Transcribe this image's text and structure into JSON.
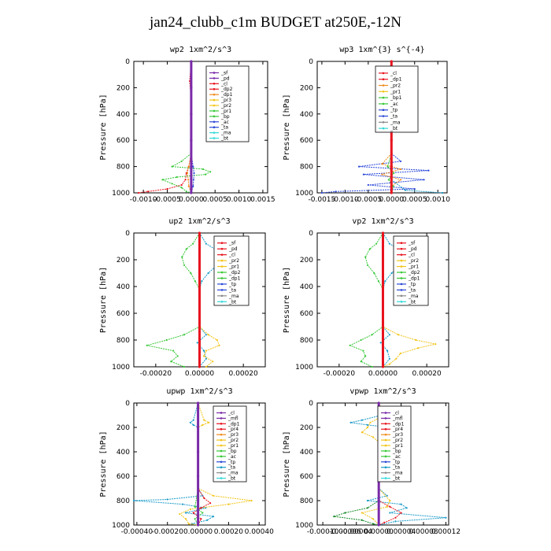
{
  "page_title": "jan24_clubb_c1m  BUDGET at250E,-12N",
  "colors": {
    "red": "#e8141e",
    "purple": "#7a2aa8",
    "orange": "#f08a1c",
    "yellow": "#f2c418",
    "green": "#38c838",
    "blue": "#2a48d8",
    "teal": "#1a9ac8",
    "cyan": "#30d8d8",
    "darkgreen": "#158a28",
    "magenta": "#c03aa0",
    "gray": "#8a8a8a"
  },
  "chart_data": [
    {
      "type": "line",
      "title": "wp2  1xm^2/s^3",
      "ylabel": "Pressure [hPa]",
      "xlim": [
        -0.0012,
        0.0016
      ],
      "ylim": [
        1000,
        0
      ],
      "xticks": [
        -0.001,
        -0.0005,
        0.0,
        0.0005,
        0.001,
        0.0015
      ],
      "xticklabels": [
        "-0.0010",
        "-0.0005",
        "0.0000",
        "0.0005",
        "0.0010",
        "0.0015"
      ],
      "yticks": [
        0,
        200,
        400,
        600,
        800,
        1000
      ],
      "legend": [
        "_sf",
        "_pd",
        "_cl",
        "_dp2",
        "_dp1",
        "_pr3",
        "_pr2",
        "_pr1",
        "_bp",
        "_ac",
        "_ta",
        "_ma",
        "_bt"
      ],
      "legend_colors": [
        "#7a2aa8",
        "#7a2aa8",
        "#e8141e",
        "#e8141e",
        "#f08a1c",
        "#f2c418",
        "#f2c418",
        "#38c838",
        "#38c838",
        "#2a48d8",
        "#2a48d8",
        "#30d8d8",
        "#30d8d8"
      ],
      "series": [
        {
          "color": "#38c838",
          "y": [
            0,
            150,
            300,
            700,
            760,
            800,
            820,
            840,
            860,
            880,
            900,
            930,
            960,
            990,
            1000
          ],
          "x": [
            0,
            -2e-05,
            0,
            0,
            -0.0002,
            -0.0004,
            0.00025,
            0.0004,
            0.0003,
            -0.0003,
            -0.0006,
            -0.0004,
            -0.0002,
            -0.0001,
            0
          ]
        },
        {
          "color": "#e8141e",
          "y": [
            0,
            150,
            300,
            700,
            800,
            850,
            900,
            940,
            970,
            990,
            1000
          ],
          "x": [
            0,
            -3e-05,
            0,
            0,
            -5e-05,
            -0.0001,
            -0.00012,
            -0.0002,
            -0.0005,
            -0.0009,
            -0.0011
          ]
        },
        {
          "color": "#2a48d8",
          "y": [
            0,
            700,
            800,
            850,
            900,
            950,
            1000
          ],
          "x": [
            0,
            0,
            4e-05,
            6e-05,
            5e-05,
            4e-05,
            0
          ]
        },
        {
          "color": "#f08a1c",
          "y": [
            0,
            700,
            800,
            850,
            900,
            950,
            1000
          ],
          "x": [
            0,
            0,
            -5e-05,
            -8e-05,
            -6e-05,
            -5e-05,
            0
          ]
        },
        {
          "color": "#7a2aa8",
          "y": [
            0,
            200,
            400,
            600,
            800,
            1000
          ],
          "x": [
            0,
            0,
            0,
            0,
            0,
            0
          ]
        }
      ]
    },
    {
      "type": "line",
      "title": "wp3  1xm^{3} s^{-4}",
      "ylabel": "Pressure [hPa]",
      "xlim": [
        -0.0016,
        0.0012
      ],
      "ylim": [
        1000,
        0
      ],
      "xticks": [
        -0.0015,
        -0.001,
        -0.0005,
        0.0,
        0.0005,
        0.001
      ],
      "xticklabels": [
        "-0.0015",
        "-0.0010",
        "-0.0005",
        "0.0000",
        "0.0005",
        "0.0010"
      ],
      "yticks": [
        0,
        200,
        400,
        600,
        800,
        1000
      ],
      "legend": [
        "_cl",
        "_dp1",
        "_pr2",
        "_pr1",
        "_bp1",
        "_ac",
        "_tp",
        "_ta",
        "_ma",
        "_bt"
      ],
      "legend_colors": [
        "#e8141e",
        "#e8141e",
        "#f08a1c",
        "#f2c418",
        "#38c838",
        "#38c838",
        "#2a48d8",
        "#2a48d8",
        "#8a8a8a",
        "#30d8d8"
      ],
      "series": [
        {
          "color": "#2a48d8",
          "y": [
            0,
            700,
            760,
            800,
            830,
            860,
            900,
            940,
            970,
            990,
            1000
          ],
          "x": [
            0,
            0,
            0.0002,
            -0.0007,
            0.0008,
            -0.0006,
            0.0007,
            -0.0005,
            0.0005,
            -0.0012,
            -0.0015
          ]
        },
        {
          "color": "#f08a1c",
          "y": [
            0,
            700,
            780,
            820,
            860,
            900,
            950,
            1000
          ],
          "x": [
            0,
            0,
            -0.0002,
            0.0002,
            -0.0002,
            0.0002,
            0,
            0
          ]
        },
        {
          "color": "#38c838",
          "y": [
            0,
            700,
            800,
            850,
            900,
            950,
            1000
          ],
          "x": [
            0,
            0,
            -8e-05,
            5e-05,
            -6e-05,
            4e-05,
            0
          ]
        },
        {
          "color": "#1a9ac8",
          "y": [
            0,
            900,
            980,
            1000
          ],
          "x": [
            0,
            0,
            0.0003,
            0.0011
          ]
        },
        {
          "color": "#e8141e",
          "y": [
            0,
            200,
            400,
            600,
            800,
            1000
          ],
          "x": [
            0,
            0,
            0,
            0,
            0,
            0
          ]
        }
      ]
    },
    {
      "type": "line",
      "title": "up2  1xm^2/s^3",
      "ylabel": "Pressure [hPa]",
      "xlim": [
        -0.0003,
        0.0003
      ],
      "ylim": [
        1000,
        0
      ],
      "xticks": [
        -0.0002,
        0.0,
        0.0002
      ],
      "xticklabels": [
        "-0.00020",
        "0.00000",
        "0.00020"
      ],
      "yticks": [
        0,
        200,
        400,
        600,
        800,
        1000
      ],
      "legend": [
        "_sf",
        "_pd",
        "_cl",
        "_pr2",
        "_pr1",
        "_dp2",
        "_dp1",
        "_tp",
        "_ta",
        "_ma",
        "_bt"
      ],
      "legend_colors": [
        "#e8141e",
        "#e8141e",
        "#e8141e",
        "#f2c418",
        "#f2c418",
        "#38c838",
        "#38c838",
        "#2a48d8",
        "#2a48d8",
        "#8a8a8a",
        "#30d8d8"
      ],
      "series": [
        {
          "color": "#1a9ac8",
          "y": [
            0,
            80,
            120,
            180,
            240,
            300,
            360,
            420,
            700,
            760,
            820,
            880,
            940,
            1000
          ],
          "x": [
            0,
            3e-05,
            7e-05,
            9e-05,
            8e-05,
            4e-05,
            1e-05,
            0,
            0,
            3e-05,
            -1e-05,
            2e-05,
            3e-05,
            0
          ]
        },
        {
          "color": "#38c838",
          "y": [
            0,
            80,
            120,
            180,
            240,
            300,
            360,
            420,
            700,
            760,
            800,
            840,
            880,
            920,
            960,
            1000
          ],
          "x": [
            0,
            -3e-05,
            -6e-05,
            -8e-05,
            -7e-05,
            -4e-05,
            -2e-05,
            0,
            0,
            -7e-05,
            -0.00015,
            -0.00024,
            -0.00012,
            -0.0001,
            -0.00013,
            -7e-05
          ]
        },
        {
          "color": "#f2c418",
          "y": [
            0,
            700,
            760,
            800,
            840,
            880,
            920,
            960,
            1000
          ],
          "x": [
            0,
            0,
            4e-05,
            8e-05,
            9e-05,
            3e-05,
            2e-05,
            6e-05,
            3e-05
          ]
        },
        {
          "color": "#e8141e",
          "y": [
            0,
            200,
            400,
            600,
            800,
            1000
          ],
          "x": [
            0,
            0,
            0,
            0,
            0,
            0
          ]
        }
      ]
    },
    {
      "type": "line",
      "title": "vp2  1xm^2/s^3",
      "ylabel": "Pressure [hPa]",
      "xlim": [
        -0.0003,
        0.0003
      ],
      "ylim": [
        1000,
        0
      ],
      "xticks": [
        -0.0002,
        0.0,
        0.0002
      ],
      "xticklabels": [
        "-0.00020",
        "0.00000",
        "0.00020"
      ],
      "yticks": [
        0,
        200,
        400,
        600,
        800,
        1000
      ],
      "legend": [
        "_sf",
        "_pd",
        "_cl",
        "_pr2",
        "_pr1",
        "_dp2",
        "_dp1",
        "_tp",
        "_ta",
        "_ma",
        "_bt"
      ],
      "legend_colors": [
        "#e8141e",
        "#e8141e",
        "#e8141e",
        "#f2c418",
        "#f2c418",
        "#38c838",
        "#38c838",
        "#2a48d8",
        "#2a48d8",
        "#8a8a8a",
        "#30d8d8"
      ],
      "series": [
        {
          "color": "#1a9ac8",
          "y": [
            0,
            80,
            120,
            180,
            240,
            300,
            360,
            420,
            700,
            760,
            820,
            880,
            940,
            1000
          ],
          "x": [
            0,
            3e-05,
            7e-05,
            9e-05,
            8e-05,
            4e-05,
            1e-05,
            0,
            0,
            3e-05,
            -1e-05,
            2e-05,
            3e-05,
            0
          ]
        },
        {
          "color": "#38c838",
          "y": [
            0,
            80,
            120,
            180,
            240,
            300,
            360,
            420,
            700,
            760,
            800,
            840,
            880,
            920,
            960,
            1000
          ],
          "x": [
            0,
            -3e-05,
            -6e-05,
            -8e-05,
            -7e-05,
            -4e-05,
            -2e-05,
            0,
            0,
            -5e-05,
            -0.0001,
            -0.00015,
            -9e-05,
            -8e-05,
            -0.0001,
            -5e-05
          ]
        },
        {
          "color": "#f2c418",
          "y": [
            0,
            700,
            760,
            800,
            830,
            860,
            900,
            940,
            980,
            1000
          ],
          "x": [
            0,
            0,
            7e-05,
            0.00015,
            0.00024,
            0.00016,
            8e-05,
            6e-05,
            3e-05,
            0
          ]
        },
        {
          "color": "#e8141e",
          "y": [
            0,
            200,
            400,
            600,
            800,
            1000
          ],
          "x": [
            0,
            0,
            0,
            0,
            0,
            0
          ]
        }
      ]
    },
    {
      "type": "line",
      "title": "upwp  1xm^2/s^3",
      "ylabel": "Pressure [hPa]",
      "xlim": [
        -0.00042,
        0.00044
      ],
      "ylim": [
        1000,
        0
      ],
      "xticks": [
        -0.0004,
        -0.0002,
        0.0,
        0.0002,
        0.0004
      ],
      "xticklabels": [
        "-0.00040",
        "-0.00020",
        "0.00000",
        "0.00020",
        "0.00040"
      ],
      "yticks": [
        0,
        200,
        400,
        600,
        800,
        1000
      ],
      "legend": [
        "_cl",
        "_mfl",
        "_dp1",
        "_pr4",
        "_pr3",
        "_pr2",
        "_pr1",
        "_bp",
        "_ac",
        "_tp",
        "_ta",
        "_ma",
        "_bt"
      ],
      "legend_colors": [
        "#7a2aa8",
        "#7a2aa8",
        "#e8141e",
        "#e8141e",
        "#f08a1c",
        "#f2c418",
        "#f2c418",
        "#38c838",
        "#38c838",
        "#2a48d8",
        "#1a9ac8",
        "#8a8a8a",
        "#30d8d8"
      ],
      "series": [
        {
          "color": "#1a9ac8",
          "y": [
            0,
            140,
            160,
            180,
            200,
            700,
            760,
            790,
            800,
            830,
            860,
            900,
            930,
            960,
            990,
            1000
          ],
          "x": [
            0,
            -3e-05,
            -5e-05,
            -3e-05,
            0,
            0,
            3e-05,
            -0.0002,
            -0.00042,
            -0.0001,
            5e-05,
            -8e-05,
            0.0001,
            6e-05,
            -4e-05,
            0
          ]
        },
        {
          "color": "#f2c418",
          "y": [
            0,
            140,
            160,
            180,
            200,
            700,
            760,
            800,
            830,
            870,
            910,
            950,
            990,
            1000
          ],
          "x": [
            0,
            4e-05,
            7e-05,
            3e-05,
            0,
            0,
            0.0001,
            0.00035,
            0.0002,
            -5e-05,
            -0.00012,
            -8e-05,
            -6e-05,
            0
          ]
        },
        {
          "color": "#e8141e",
          "y": [
            0,
            700,
            780,
            820,
            860,
            900,
            950,
            1000
          ],
          "x": [
            0,
            0,
            4e-05,
            8e-05,
            2e-05,
            -3e-05,
            2e-05,
            0
          ]
        },
        {
          "color": "#38c838",
          "y": [
            0,
            700,
            850,
            900,
            950,
            1000
          ],
          "x": [
            0,
            0,
            -2e-05,
            3e-05,
            -2e-05,
            0
          ]
        },
        {
          "color": "#7a2aa8",
          "y": [
            0,
            200,
            400,
            600,
            800,
            1000
          ],
          "x": [
            0,
            0,
            0,
            0,
            0,
            0
          ]
        }
      ]
    },
    {
      "type": "line",
      "title": "vpwp  1xm^2/s^3",
      "ylabel": "Pressure [hPa]",
      "xlim": [
        -0.00011,
        0.000125
      ],
      "ylim": [
        1000,
        0
      ],
      "xticks": [
        -0.0001,
        -6e-05,
        -4e-05,
        0.0,
        4e-05,
        8e-05,
        0.00012
      ],
      "xticklabels": [
        "-0.00010",
        "-0.00006",
        "-0.00004",
        "0.00000",
        "0.00004",
        "0.00008",
        "0.00012"
      ],
      "yticks": [
        0,
        200,
        400,
        600,
        800,
        1000
      ],
      "legend": [
        "_cl",
        "_mfl",
        "_dp1",
        "_pr4",
        "_pr3",
        "_pr2",
        "_pr1",
        "_bp",
        "_ac",
        "_tp",
        "_ta",
        "_ma",
        "_bt"
      ],
      "legend_colors": [
        "#7a2aa8",
        "#7a2aa8",
        "#e8141e",
        "#e8141e",
        "#f08a1c",
        "#f2c418",
        "#f2c418",
        "#38c838",
        "#38c838",
        "#2a48d8",
        "#1a9ac8",
        "#8a8a8a",
        "#30d8d8"
      ],
      "series": [
        {
          "color": "#1a9ac8",
          "y": [
            0,
            100,
            140,
            160,
            180,
            200,
            240,
            280,
            320,
            700,
            760,
            800,
            830,
            860,
            900,
            940,
            970,
            1000
          ],
          "x": [
            0,
            5e-06,
            -3e-05,
            -5e-05,
            -2e-05,
            2e-05,
            4e-05,
            2e-05,
            0,
            0,
            1.5e-05,
            -2e-05,
            4e-05,
            5e-05,
            2e-05,
            0.00012,
            3e-05,
            0
          ]
        },
        {
          "color": "#f2c418",
          "y": [
            0,
            100,
            160,
            200,
            240,
            280,
            320,
            700,
            800,
            850,
            900,
            950,
            1000
          ],
          "x": [
            0,
            1e-05,
            -1.5e-05,
            -2e-05,
            -3e-05,
            -1e-05,
            0,
            0,
            2e-05,
            1.5e-05,
            -3e-05,
            -1e-05,
            0
          ]
        },
        {
          "color": "#158a28",
          "y": [
            0,
            800,
            860,
            900,
            930,
            960,
            990,
            1000
          ],
          "x": [
            0,
            0,
            -2e-05,
            -6e-05,
            -8e-05,
            -3e-05,
            -1e-05,
            0
          ]
        },
        {
          "color": "#e8141e",
          "y": [
            0,
            800,
            850,
            900,
            940,
            980,
            1000
          ],
          "x": [
            0,
            0,
            2e-05,
            4e-05,
            3e-05,
            1e-05,
            0
          ]
        },
        {
          "color": "#7a2aa8",
          "y": [
            0,
            200,
            400,
            600,
            800,
            1000
          ],
          "x": [
            0,
            0,
            0,
            0,
            0,
            0
          ]
        }
      ]
    }
  ]
}
